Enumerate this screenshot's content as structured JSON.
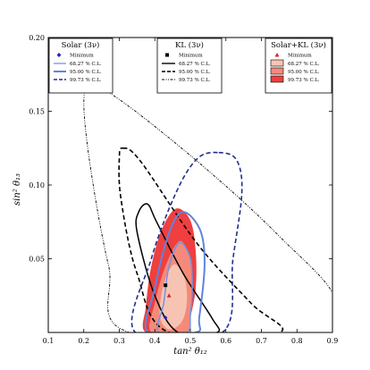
{
  "chart_data": {
    "type": "contour",
    "xlabel": "tan² θ₁₂",
    "ylabel": "sin² θ₁₃",
    "xlim": [
      0.1,
      0.9
    ],
    "ylim": [
      0.0,
      0.2
    ],
    "x_ticks": [
      0.1,
      0.2,
      0.3,
      0.4,
      0.5,
      0.6,
      0.7,
      0.8,
      0.9
    ],
    "y_ticks": [
      0.05,
      0.1,
      0.15,
      0.2
    ],
    "x_tick_labels": [
      "0.1",
      "0.2",
      "0.3",
      "0.4",
      "0.5",
      "0.6",
      "0.7",
      "0.8",
      "0.9"
    ],
    "y_tick_labels": [
      "0.05",
      "0.10",
      "0.15",
      "0.20"
    ],
    "grid": false,
    "legends": [
      {
        "title": "Solar (3ν)",
        "placement": "top-left",
        "entries": [
          {
            "label": "Minimum",
            "style": "marker-diamond",
            "color": "#1f1fc8"
          },
          {
            "label": "68.27 % C.L.",
            "style": "solid",
            "color": "#6f95e6"
          },
          {
            "label": "95.00 % C.L.",
            "style": "solid-thick",
            "color": "#5f85dd"
          },
          {
            "label": "99.73 % C.L.",
            "style": "dashed",
            "color": "#1f2f8f"
          }
        ]
      },
      {
        "title": "KL (3ν)",
        "placement": "top-center",
        "entries": [
          {
            "label": "Minimum",
            "style": "marker-square",
            "color": "#000000"
          },
          {
            "label": "68.27 % C.L.",
            "style": "solid",
            "color": "#000000"
          },
          {
            "label": "95.00 % C.L.",
            "style": "dashed",
            "color": "#000000"
          },
          {
            "label": "99.73 % C.L.",
            "style": "dashdot",
            "color": "#000000"
          }
        ]
      },
      {
        "title": "Solar+KL (3ν)",
        "placement": "top-right",
        "entries": [
          {
            "label": "Minimum",
            "style": "marker-triangle",
            "color": "#e02020"
          },
          {
            "label": "68.27 % C.L.",
            "style": "fill",
            "color": "#f7c4b4"
          },
          {
            "label": "95.00 % C.L.",
            "style": "fill",
            "color": "#f58a7a"
          },
          {
            "label": "99.73 % C.L.",
            "style": "fill",
            "color": "#ef3f3f"
          }
        ]
      }
    ],
    "minima": [
      {
        "set": "Solar (3ν)",
        "marker": "diamond",
        "x": 0.43,
        "y": 0.01
      },
      {
        "set": "KL (3ν)",
        "marker": "square",
        "x": 0.43,
        "y": 0.032
      },
      {
        "set": "Solar+KL (3ν)",
        "marker": "triangle",
        "x": 0.44,
        "y": 0.025
      }
    ],
    "regions": [
      {
        "set": "Solar+KL (3ν)",
        "level": "99.73 % C.L.",
        "fill": "#ef3f3f",
        "points": [
          [
            0.46,
            0.084
          ],
          [
            0.5,
            0.076
          ],
          [
            0.515,
            0.055
          ],
          [
            0.515,
            0.03
          ],
          [
            0.5,
            0.01
          ],
          [
            0.49,
            0.0
          ],
          [
            0.375,
            0.0
          ],
          [
            0.375,
            0.018
          ],
          [
            0.39,
            0.045
          ],
          [
            0.42,
            0.07
          ]
        ]
      },
      {
        "set": "Solar+KL (3ν)",
        "level": "95.00 % C.L.",
        "fill": "#f58a7a",
        "points": [
          [
            0.47,
            0.062
          ],
          [
            0.5,
            0.05
          ],
          [
            0.505,
            0.03
          ],
          [
            0.5,
            0.012
          ],
          [
            0.49,
            0.0
          ],
          [
            0.39,
            0.0
          ],
          [
            0.4,
            0.02
          ],
          [
            0.43,
            0.045
          ]
        ]
      },
      {
        "set": "Solar+KL (3ν)",
        "level": "68.27 % C.L.",
        "fill": "#f7c4b4",
        "points": [
          [
            0.46,
            0.046
          ],
          [
            0.485,
            0.036
          ],
          [
            0.49,
            0.02
          ],
          [
            0.475,
            0.007
          ],
          [
            0.44,
            0.002
          ],
          [
            0.415,
            0.01
          ],
          [
            0.42,
            0.028
          ],
          [
            0.44,
            0.042
          ]
        ]
      }
    ],
    "contours": [
      {
        "set": "KL (3ν)",
        "level": "68.27 % C.L.",
        "style": "solid",
        "color": "#000000",
        "points": [
          [
            0.38,
            0.087
          ],
          [
            0.405,
            0.075
          ],
          [
            0.48,
            0.04
          ],
          [
            0.56,
            0.01
          ],
          [
            0.575,
            0.0
          ],
          [
            0.465,
            0.0
          ],
          [
            0.4,
            0.025
          ],
          [
            0.35,
            0.068
          ],
          [
            0.355,
            0.082
          ]
        ]
      },
      {
        "set": "KL (3ν)",
        "level": "95.00 % C.L.",
        "style": "dashed",
        "color": "#000000",
        "points": [
          [
            0.31,
            0.125
          ],
          [
            0.36,
            0.116
          ],
          [
            0.52,
            0.06
          ],
          [
            0.67,
            0.02
          ],
          [
            0.75,
            0.0
          ],
          [
            0.44,
            0.0
          ],
          [
            0.35,
            0.04
          ],
          [
            0.305,
            0.09
          ],
          [
            0.3,
            0.118
          ]
        ]
      },
      {
        "set": "KL (3ν)",
        "level": "99.73 % C.L.",
        "style": "dashdot",
        "color": "#000000",
        "points": [
          [
            0.22,
            0.168
          ],
          [
            0.3,
            0.158
          ],
          [
            0.45,
            0.13
          ],
          [
            0.62,
            0.095
          ],
          [
            0.76,
            0.063
          ],
          [
            0.9,
            0.027
          ],
          [
            0.9,
            0.0
          ],
          [
            0.33,
            0.0
          ],
          [
            0.27,
            0.045
          ],
          [
            0.22,
            0.11
          ],
          [
            0.2,
            0.155
          ]
        ]
      },
      {
        "set": "Solar (3ν)",
        "level": "68.27 % C.L.",
        "style": "solid",
        "color": "#6f95e6",
        "points": [
          [
            0.47,
            0.061
          ],
          [
            0.5,
            0.05
          ],
          [
            0.505,
            0.03
          ],
          [
            0.5,
            0.012
          ],
          [
            0.49,
            0.0
          ],
          [
            0.41,
            0.0
          ],
          [
            0.425,
            0.02
          ],
          [
            0.44,
            0.045
          ]
        ]
      },
      {
        "set": "Solar (3ν)",
        "level": "95.00 % C.L.",
        "style": "solid-thick",
        "color": "#5f85dd",
        "points": [
          [
            0.49,
            0.081
          ],
          [
            0.53,
            0.068
          ],
          [
            0.54,
            0.045
          ],
          [
            0.525,
            0.01
          ],
          [
            0.515,
            0.0
          ],
          [
            0.38,
            0.0
          ],
          [
            0.4,
            0.03
          ],
          [
            0.43,
            0.06
          ],
          [
            0.46,
            0.078
          ]
        ]
      },
      {
        "set": "Solar (3ν)",
        "level": "99.73 % C.L.",
        "style": "dashed",
        "color": "#1f2f8f",
        "points": [
          [
            0.58,
            0.122
          ],
          [
            0.63,
            0.117
          ],
          [
            0.645,
            0.095
          ],
          [
            0.62,
            0.05
          ],
          [
            0.59,
            0.0
          ],
          [
            0.345,
            0.0
          ],
          [
            0.39,
            0.05
          ],
          [
            0.46,
            0.095
          ],
          [
            0.52,
            0.118
          ]
        ]
      }
    ]
  }
}
